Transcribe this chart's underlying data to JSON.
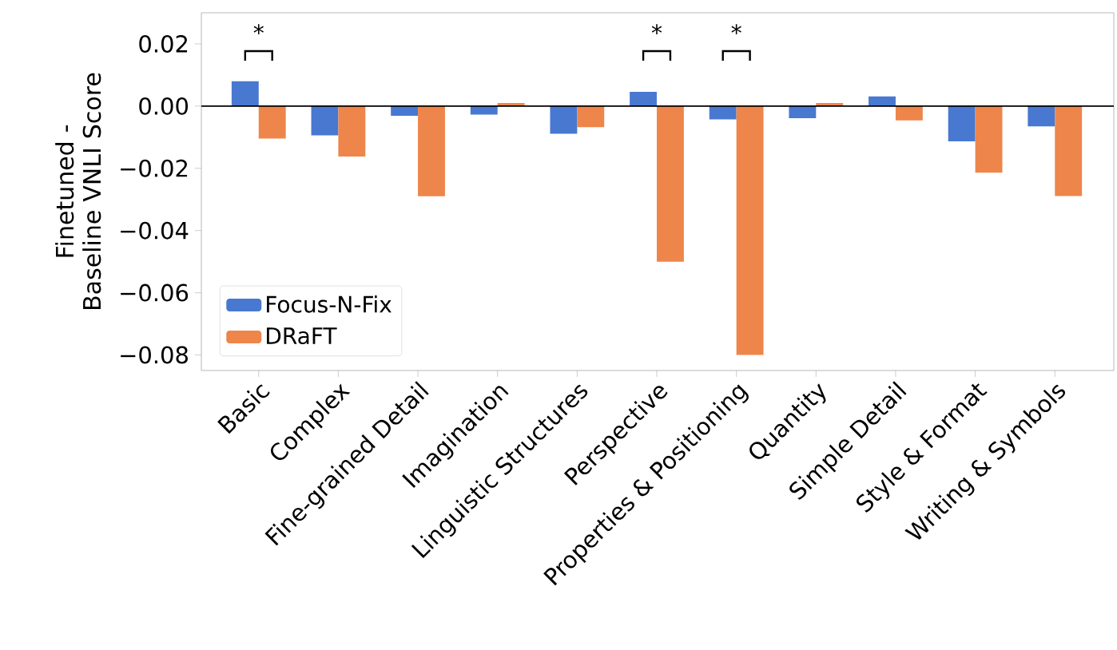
{
  "chart_data": {
    "type": "bar",
    "ylabel": "Finetuned - Baseline VNLI Score",
    "categories": [
      "Basic",
      "Complex",
      "Fine-grained Detail",
      "Imagination",
      "Linguistic Structures",
      "Perspective",
      "Properties & Positioning",
      "Quantity",
      "Simple Detail",
      "Style & Format",
      "Writing & Symbols"
    ],
    "series": [
      {
        "name": "Focus-N-Fix",
        "color": "#4878d0",
        "values": [
          0.008,
          -0.0094,
          -0.0031,
          -0.0027,
          -0.0089,
          0.0046,
          -0.0043,
          -0.0039,
          0.0031,
          -0.0113,
          -0.0065
        ]
      },
      {
        "name": "DRaFT",
        "color": "#ee854a",
        "values": [
          -0.0104,
          -0.0162,
          -0.029,
          0.001,
          -0.0068,
          -0.05,
          -0.08,
          0.001,
          -0.0046,
          -0.0214,
          -0.0289
        ]
      }
    ],
    "ylim": [
      -0.085,
      0.03
    ],
    "yticks": [
      {
        "value": -0.08,
        "label": "−0.08"
      },
      {
        "value": -0.06,
        "label": "−0.06"
      },
      {
        "value": -0.04,
        "label": "−0.04"
      },
      {
        "value": -0.02,
        "label": "−0.02"
      },
      {
        "value": 0,
        "label": "0.00"
      },
      {
        "value": 0.02,
        "label": "0.02"
      }
    ],
    "ref_lines": [
      {
        "axis": "y",
        "value": 0,
        "color": "#000000"
      }
    ],
    "annotations": [
      "*",
      "*",
      "*"
    ],
    "legend": "bottom left",
    "grid": false
  }
}
